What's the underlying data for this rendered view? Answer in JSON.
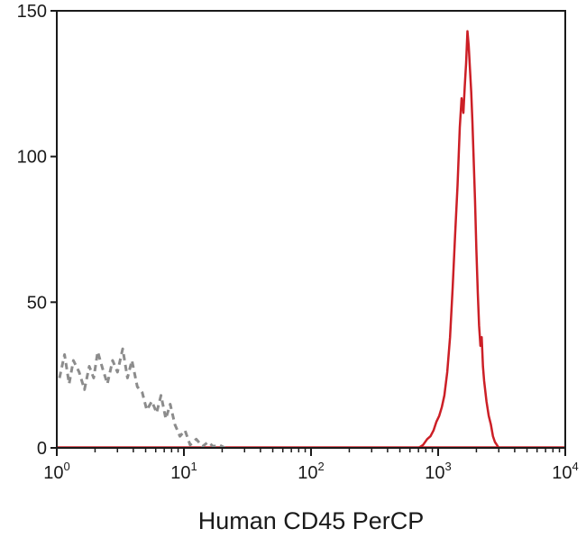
{
  "chart_data": {
    "type": "line",
    "title": "",
    "xlabel": "Human CD45 PerCP",
    "ylabel": "",
    "x_scale": "log",
    "xlim": [
      1,
      10000
    ],
    "ylim": [
      0,
      150
    ],
    "grid": false,
    "legend": "none",
    "x_ticks": [
      {
        "base": "10",
        "exp": "0"
      },
      {
        "base": "10",
        "exp": "1"
      },
      {
        "base": "10",
        "exp": "2"
      },
      {
        "base": "10",
        "exp": "3"
      },
      {
        "base": "10",
        "exp": "4"
      }
    ],
    "y_ticks": [
      "0",
      "50",
      "100",
      "150"
    ],
    "series": [
      {
        "color": "#8c8c8c",
        "style": "dashed",
        "x": [
          1.05,
          1.15,
          1.25,
          1.35,
          1.5,
          1.65,
          1.8,
          1.95,
          2.1,
          2.3,
          2.5,
          2.75,
          3.0,
          3.3,
          3.6,
          3.9,
          4.3,
          4.7,
          5.1,
          5.6,
          6.1,
          6.6,
          7.2,
          7.8,
          8.5,
          9.3,
          10.2,
          11.2,
          12.5,
          14,
          15.5,
          17,
          19,
          21
        ],
        "y": [
          24,
          32,
          22,
          30,
          26,
          20,
          28,
          24,
          33,
          27,
          22,
          30,
          26,
          34,
          24,
          30,
          21,
          19,
          13,
          16,
          12,
          18,
          10,
          15,
          8,
          4,
          6,
          1,
          3,
          0.5,
          2,
          0.5,
          1,
          0
        ]
      },
      {
        "color": "#cc1f26",
        "style": "solid",
        "x": [
          700,
          760,
          820,
          870,
          920,
          970,
          1020,
          1070,
          1120,
          1180,
          1240,
          1300,
          1360,
          1420,
          1480,
          1530,
          1580,
          1620,
          1660,
          1700,
          1740,
          1780,
          1820,
          1860,
          1900,
          1950,
          2000,
          2050,
          2100,
          2150,
          2200,
          2250,
          2300,
          2400,
          2500,
          2600,
          2700,
          2800,
          2900,
          3000
        ],
        "y": [
          0,
          1,
          3,
          4,
          6,
          9,
          11,
          14,
          18,
          26,
          38,
          55,
          73,
          90,
          110,
          120,
          115,
          124,
          132,
          143,
          138,
          130,
          122,
          112,
          100,
          85,
          68,
          53,
          42,
          35,
          38,
          28,
          23,
          16,
          11,
          8,
          4,
          2,
          1,
          0
        ]
      }
    ]
  }
}
